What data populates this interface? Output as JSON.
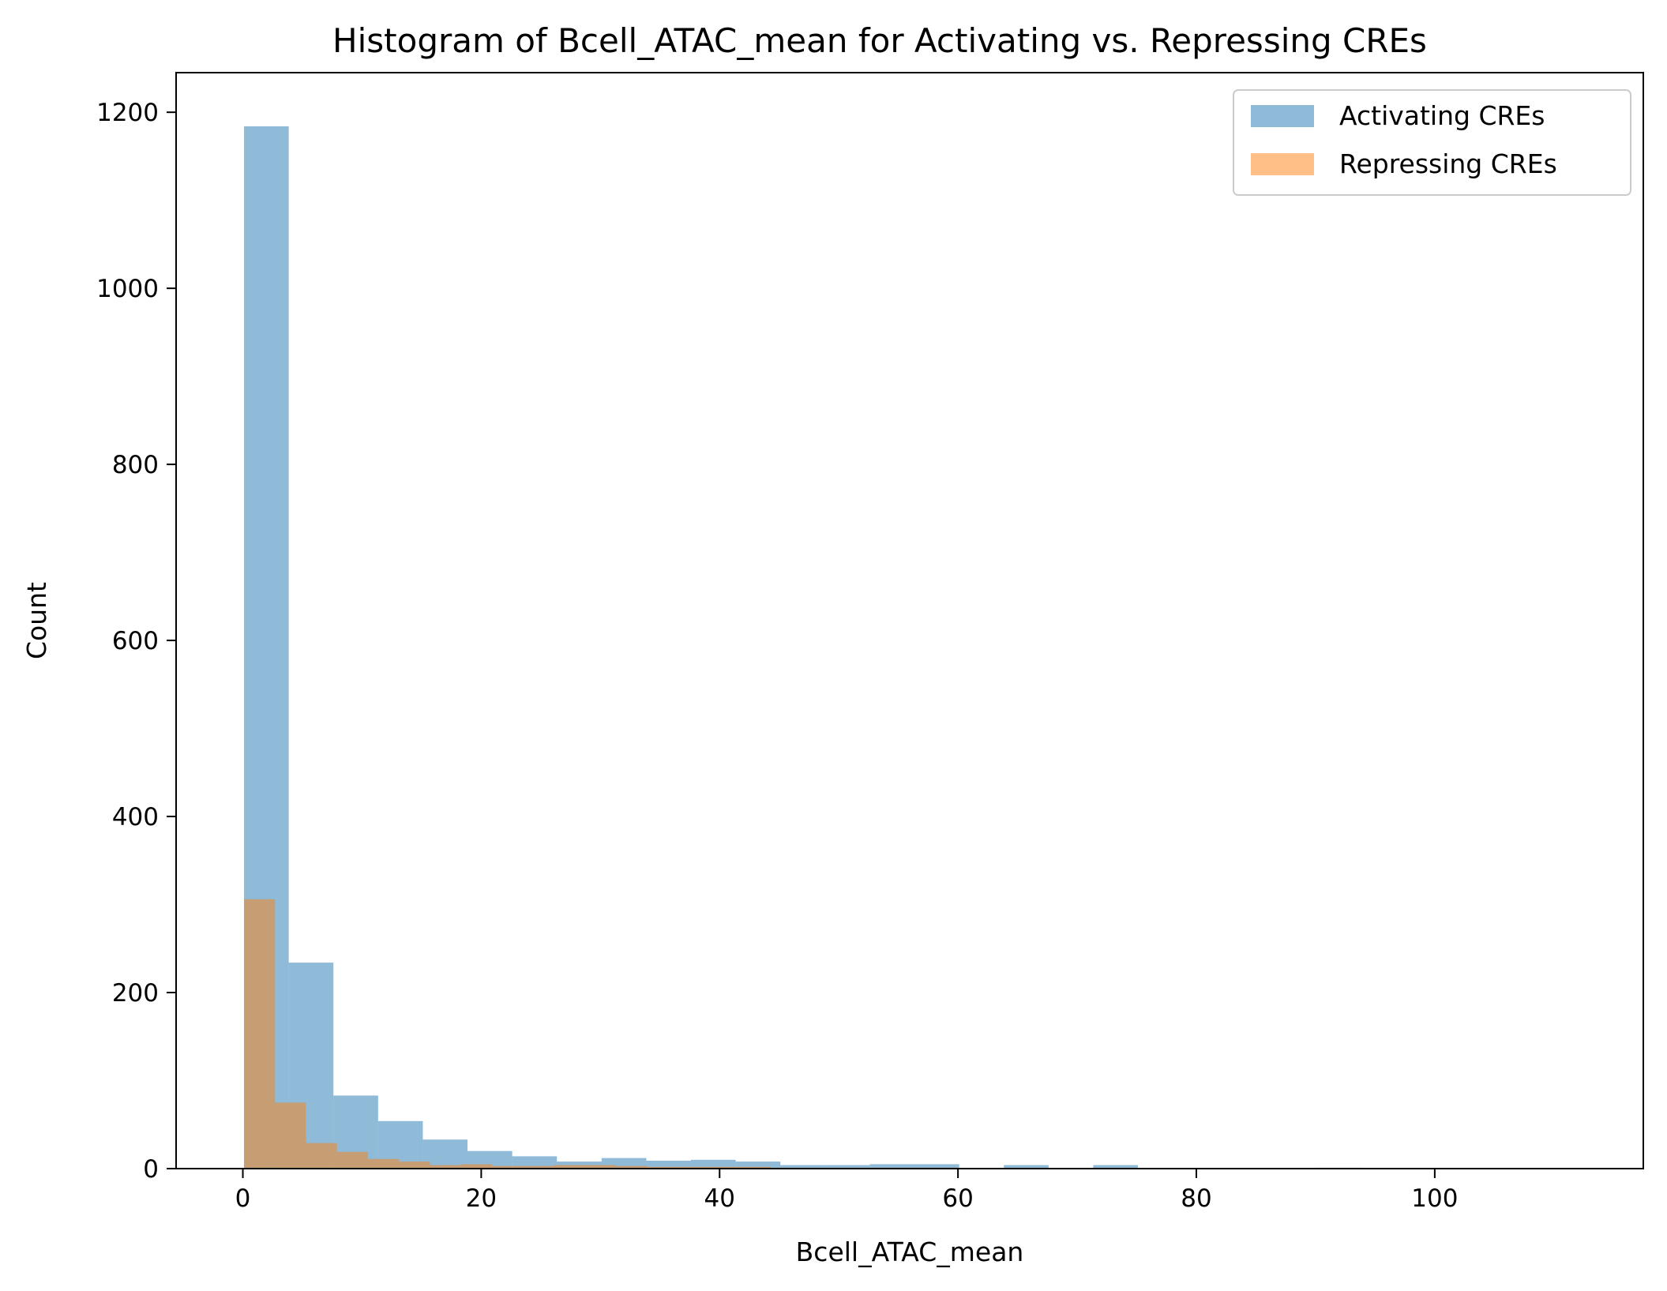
{
  "chart_data": {
    "type": "bar",
    "title": "Histogram of Bcell_ATAC_mean for Activating vs. Repressing CREs",
    "xlabel": "Bcell_ATAC_mean",
    "ylabel": "Count",
    "xlim": [
      -5.6,
      117.5
    ],
    "ylim": [
      0,
      1245
    ],
    "xticks": [
      0,
      20,
      40,
      60,
      80,
      100
    ],
    "yticks": [
      0,
      200,
      400,
      600,
      800,
      1000,
      1200
    ],
    "legend_position": "top-right",
    "series": [
      {
        "name": "Activating CREs",
        "color": "#1f77b4",
        "opacity": 0.5,
        "bins": [
          {
            "x0": 0.1,
            "x1": 3.85,
            "count": 1184
          },
          {
            "x0": 3.85,
            "x1": 7.6,
            "count": 234
          },
          {
            "x0": 7.6,
            "x1": 11.35,
            "count": 83
          },
          {
            "x0": 11.35,
            "x1": 15.1,
            "count": 54
          },
          {
            "x0": 15.1,
            "x1": 18.85,
            "count": 33
          },
          {
            "x0": 18.85,
            "x1": 22.6,
            "count": 20
          },
          {
            "x0": 22.6,
            "x1": 26.35,
            "count": 14
          },
          {
            "x0": 26.35,
            "x1": 30.1,
            "count": 8
          },
          {
            "x0": 30.1,
            "x1": 33.85,
            "count": 12
          },
          {
            "x0": 33.85,
            "x1": 37.6,
            "count": 9
          },
          {
            "x0": 37.6,
            "x1": 41.35,
            "count": 10
          },
          {
            "x0": 41.35,
            "x1": 45.1,
            "count": 8
          },
          {
            "x0": 45.1,
            "x1": 48.85,
            "count": 4
          },
          {
            "x0": 48.85,
            "x1": 52.6,
            "count": 4
          },
          {
            "x0": 52.6,
            "x1": 56.35,
            "count": 5
          },
          {
            "x0": 56.35,
            "x1": 60.1,
            "count": 5
          },
          {
            "x0": 63.85,
            "x1": 67.6,
            "count": 4
          },
          {
            "x0": 71.35,
            "x1": 75.1,
            "count": 4
          },
          {
            "x0": 90.1,
            "x1": 93.85,
            "count": 1
          }
        ]
      },
      {
        "name": "Repressing CREs",
        "color": "#ff7f0e",
        "opacity": 0.5,
        "bins": [
          {
            "x0": 0.1,
            "x1": 2.7,
            "count": 306
          },
          {
            "x0": 2.7,
            "x1": 5.3,
            "count": 75
          },
          {
            "x0": 5.3,
            "x1": 7.9,
            "count": 29
          },
          {
            "x0": 7.9,
            "x1": 10.5,
            "count": 19
          },
          {
            "x0": 10.5,
            "x1": 13.1,
            "count": 11
          },
          {
            "x0": 13.1,
            "x1": 15.7,
            "count": 8
          },
          {
            "x0": 15.7,
            "x1": 18.3,
            "count": 4
          },
          {
            "x0": 18.3,
            "x1": 20.9,
            "count": 5
          },
          {
            "x0": 20.9,
            "x1": 23.5,
            "count": 3
          },
          {
            "x0": 23.5,
            "x1": 26.1,
            "count": 3
          },
          {
            "x0": 26.1,
            "x1": 28.7,
            "count": 4
          },
          {
            "x0": 28.7,
            "x1": 31.3,
            "count": 4
          },
          {
            "x0": 31.3,
            "x1": 33.9,
            "count": 3
          },
          {
            "x0": 33.9,
            "x1": 36.5,
            "count": 2
          },
          {
            "x0": 36.5,
            "x1": 39.1,
            "count": 2
          },
          {
            "x0": 39.1,
            "x1": 41.7,
            "count": 2
          },
          {
            "x0": 41.7,
            "x1": 44.3,
            "count": 2
          },
          {
            "x0": 44.3,
            "x1": 46.9,
            "count": 1
          },
          {
            "x0": 46.9,
            "x1": 49.5,
            "count": 1
          },
          {
            "x0": 49.5,
            "x1": 52.1,
            "count": 1
          },
          {
            "x0": 52.1,
            "x1": 54.7,
            "count": 1
          },
          {
            "x0": 54.7,
            "x1": 57.3,
            "count": 1
          },
          {
            "x0": 57.3,
            "x1": 59.9,
            "count": 1
          }
        ]
      }
    ]
  }
}
